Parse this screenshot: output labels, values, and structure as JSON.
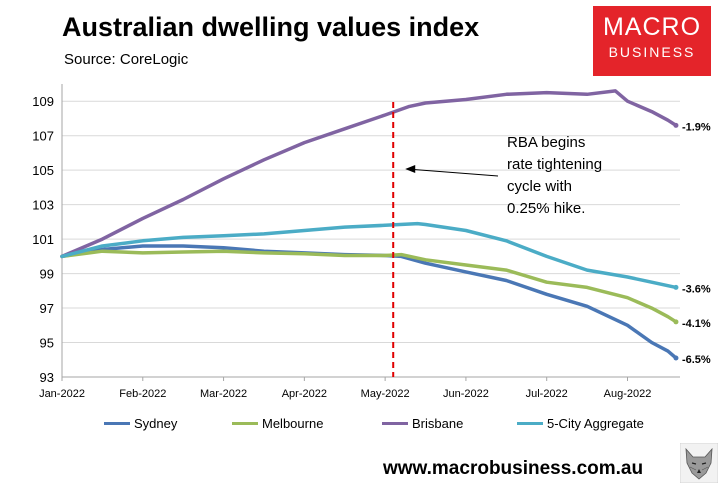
{
  "title": "Australian dwelling values index",
  "source": "Source: CoreLogic",
  "logo": {
    "line1": "MACRO",
    "line2": "BUSINESS"
  },
  "url": "www.macrobusiness.com.au",
  "chart_data": {
    "type": "line",
    "title": "Australian dwelling values index",
    "xlabel": "",
    "ylabel": "",
    "ylim": [
      93,
      110
    ],
    "y_ticks": [
      93,
      95,
      97,
      99,
      101,
      103,
      105,
      107,
      109
    ],
    "x_ticks": [
      "Jan-2022",
      "Feb-2022",
      "Mar-2022",
      "Apr-2022",
      "May-2022",
      "Jun-2022",
      "Jul-2022",
      "Aug-2022"
    ],
    "x_range_months": [
      0,
      7.65
    ],
    "grid": "horizontal",
    "legend_position": "bottom",
    "series": [
      {
        "name": "Sydney",
        "color": "#4a77b5",
        "end_label": "-6.5%",
        "points": [
          [
            0,
            100
          ],
          [
            0.5,
            100.4
          ],
          [
            1,
            100.6
          ],
          [
            1.5,
            100.6
          ],
          [
            2,
            100.5
          ],
          [
            2.5,
            100.3
          ],
          [
            3,
            100.2
          ],
          [
            3.5,
            100.1
          ],
          [
            4,
            100.05
          ],
          [
            4.2,
            100.0
          ],
          [
            4.5,
            99.6
          ],
          [
            5,
            99.1
          ],
          [
            5.5,
            98.6
          ],
          [
            6,
            97.8
          ],
          [
            6.5,
            97.1
          ],
          [
            7,
            96.0
          ],
          [
            7.3,
            95.0
          ],
          [
            7.5,
            94.5
          ],
          [
            7.6,
            94.1
          ]
        ]
      },
      {
        "name": "Melbourne",
        "color": "#9bbb59",
        "end_label": "-4.1%",
        "points": [
          [
            0,
            100
          ],
          [
            0.5,
            100.3
          ],
          [
            1,
            100.2
          ],
          [
            1.5,
            100.25
          ],
          [
            2,
            100.3
          ],
          [
            2.5,
            100.2
          ],
          [
            3,
            100.15
          ],
          [
            3.5,
            100.05
          ],
          [
            4,
            100.05
          ],
          [
            4.2,
            100.1
          ],
          [
            4.5,
            99.8
          ],
          [
            5,
            99.5
          ],
          [
            5.5,
            99.2
          ],
          [
            6,
            98.5
          ],
          [
            6.5,
            98.2
          ],
          [
            7,
            97.6
          ],
          [
            7.3,
            97.0
          ],
          [
            7.5,
            96.5
          ],
          [
            7.6,
            96.2
          ]
        ]
      },
      {
        "name": "Brisbane",
        "color": "#8064a2",
        "end_label": "-1.9%",
        "points": [
          [
            0,
            100
          ],
          [
            0.5,
            101.0
          ],
          [
            1,
            102.2
          ],
          [
            1.5,
            103.3
          ],
          [
            2,
            104.5
          ],
          [
            2.5,
            105.6
          ],
          [
            3,
            106.6
          ],
          [
            3.5,
            107.4
          ],
          [
            4,
            108.2
          ],
          [
            4.3,
            108.7
          ],
          [
            4.5,
            108.9
          ],
          [
            5,
            109.1
          ],
          [
            5.5,
            109.4
          ],
          [
            6,
            109.5
          ],
          [
            6.5,
            109.4
          ],
          [
            6.85,
            109.6
          ],
          [
            7,
            109.0
          ],
          [
            7.3,
            108.4
          ],
          [
            7.5,
            107.9
          ],
          [
            7.6,
            107.6
          ]
        ]
      },
      {
        "name": "5-City Aggregate",
        "color": "#4bacc6",
        "end_label": "-3.6%",
        "points": [
          [
            0,
            100
          ],
          [
            0.5,
            100.6
          ],
          [
            1,
            100.9
          ],
          [
            1.5,
            101.1
          ],
          [
            2,
            101.2
          ],
          [
            2.5,
            101.3
          ],
          [
            3,
            101.5
          ],
          [
            3.5,
            101.7
          ],
          [
            4,
            101.8
          ],
          [
            4.4,
            101.9
          ],
          [
            4.5,
            101.85
          ],
          [
            5,
            101.5
          ],
          [
            5.5,
            100.9
          ],
          [
            6,
            100.0
          ],
          [
            6.5,
            99.2
          ],
          [
            7,
            98.8
          ],
          [
            7.3,
            98.5
          ],
          [
            7.6,
            98.2
          ]
        ]
      }
    ],
    "annotation": {
      "lines": [
        "RBA begins",
        "rate tightening",
        "cycle with",
        "0.25% hike."
      ],
      "x": 4.1
    }
  }
}
